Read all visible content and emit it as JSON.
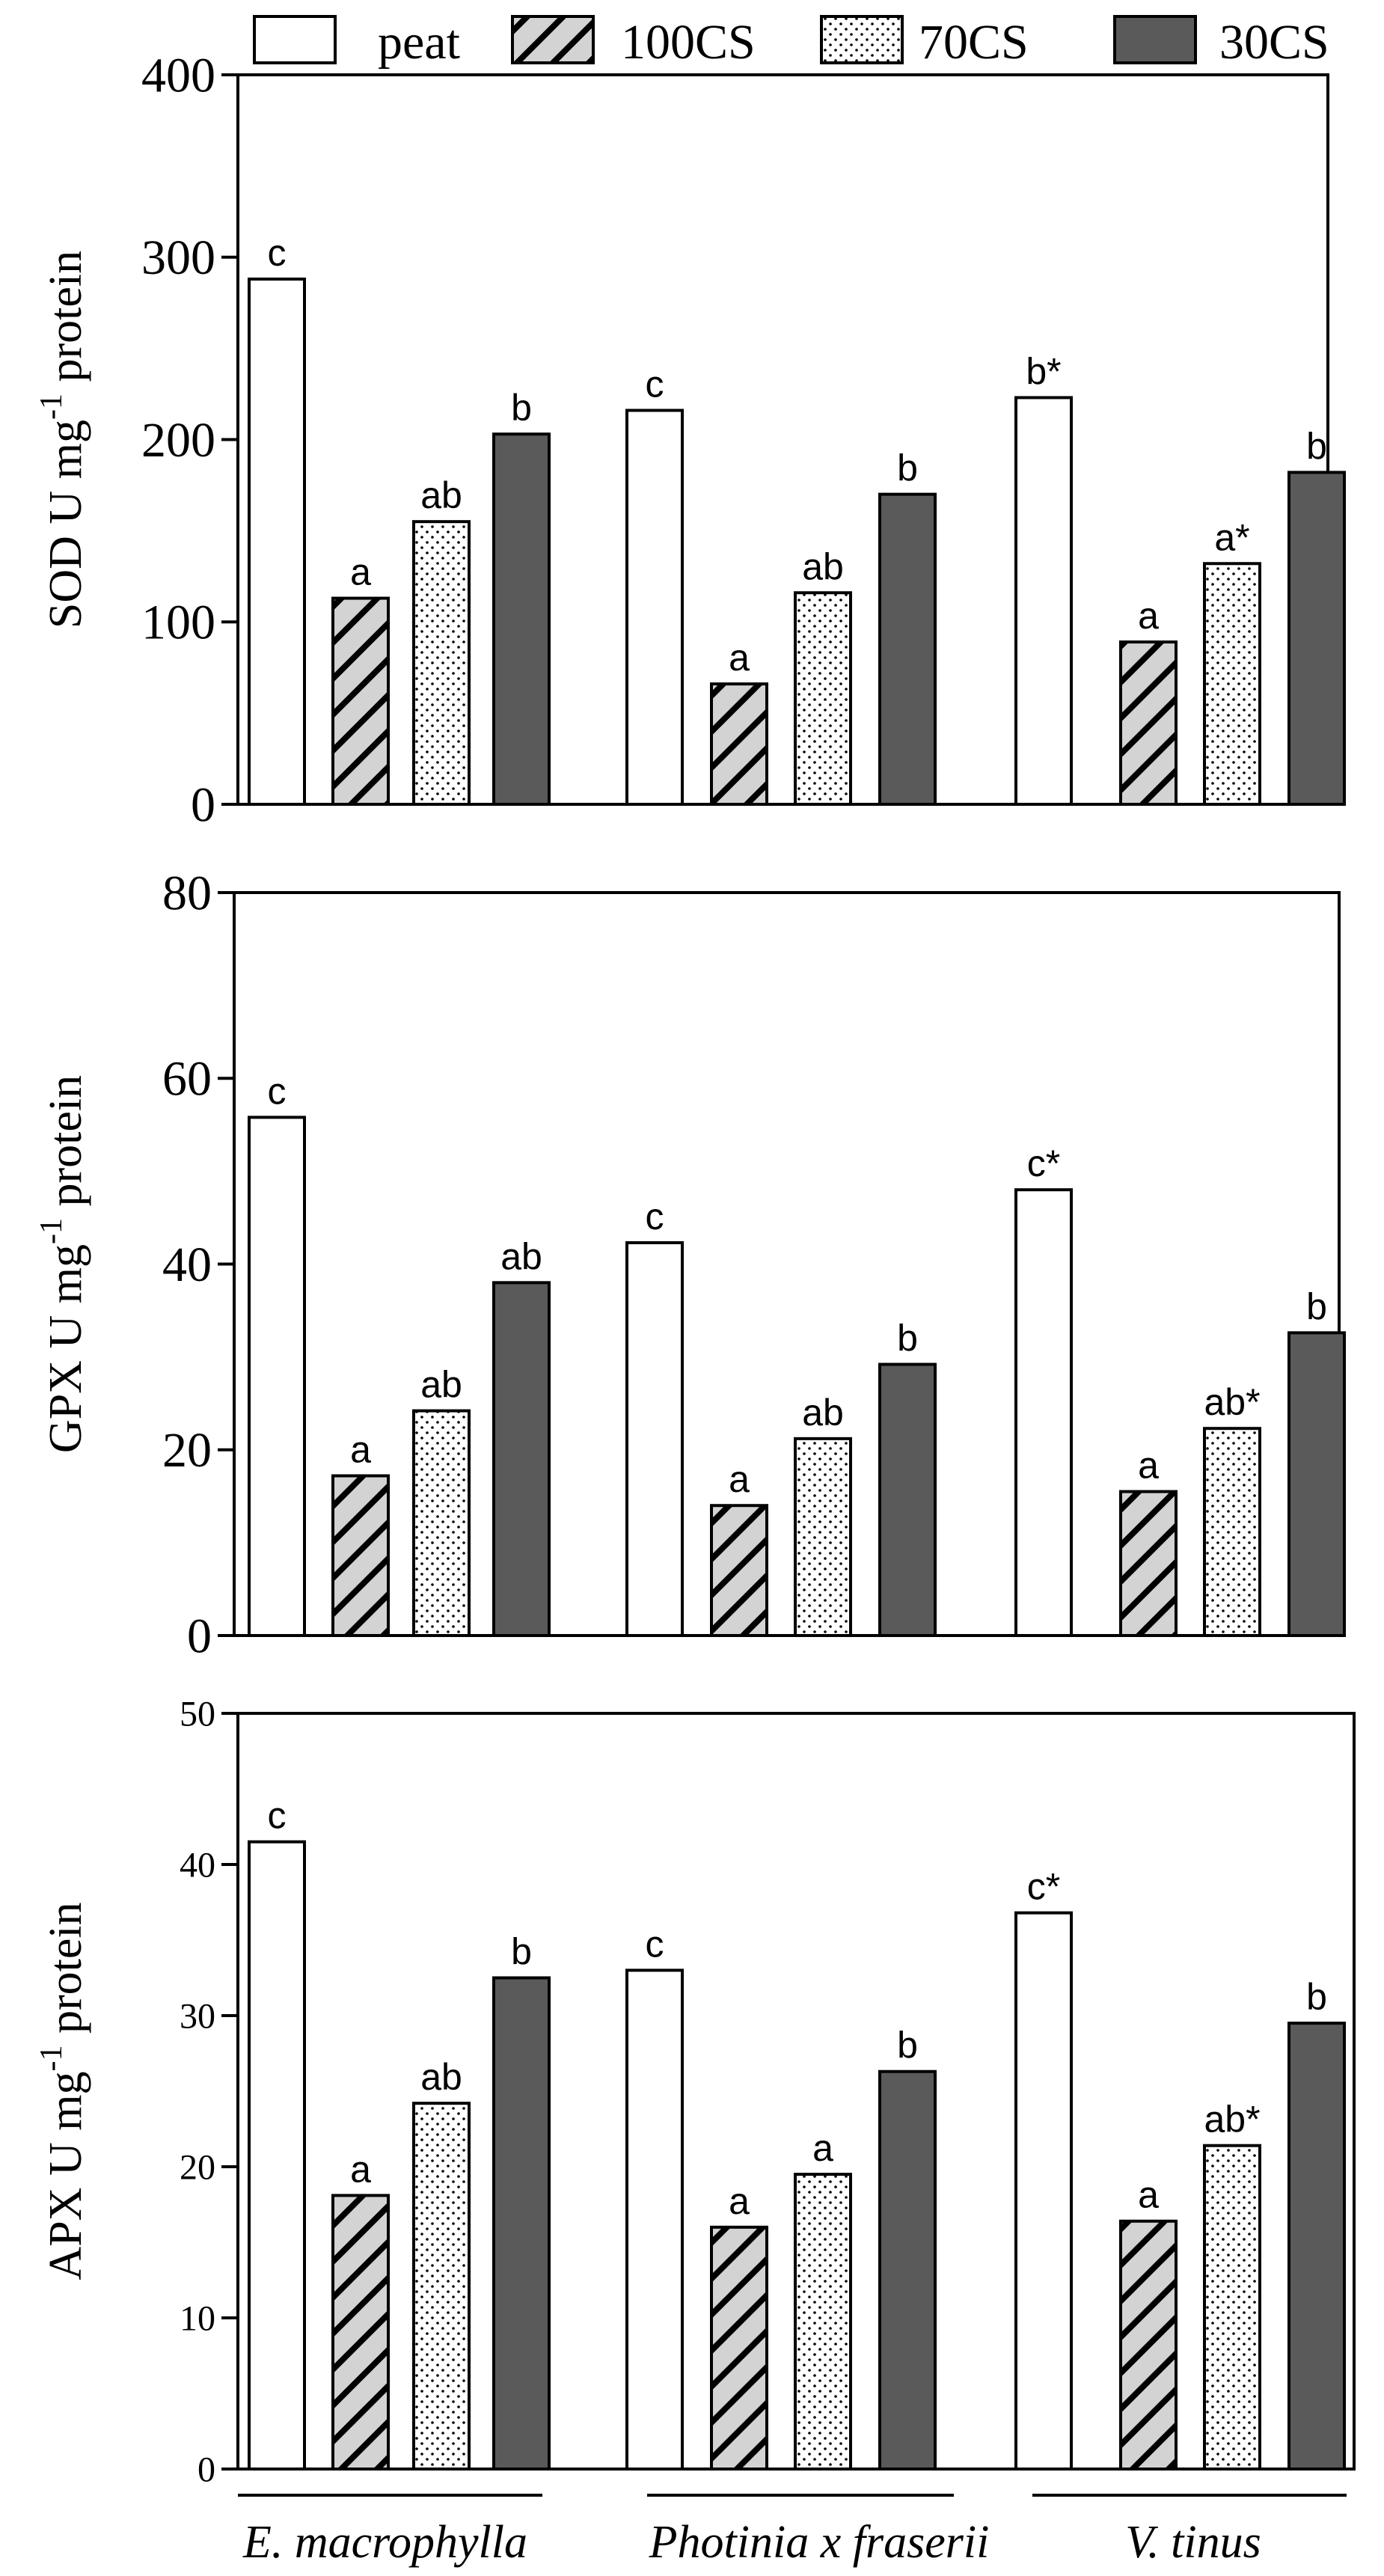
{
  "legend": [
    {
      "key": "peat",
      "label": "peat",
      "style": "white"
    },
    {
      "key": "100CS",
      "label": "100CS",
      "style": "hatch"
    },
    {
      "key": "70CS",
      "label": "70CS",
      "style": "dots"
    },
    {
      "key": "30CS",
      "label": "30CS",
      "style": "dark"
    }
  ],
  "species": [
    "E. macrophylla",
    "Photinia x fraserii",
    "V. tinus"
  ],
  "colors": {
    "dark": "#5a5a5a",
    "hatch_fill": "#d3d3d3",
    "stroke": "#000000",
    "white": "#ffffff"
  },
  "chart_data": [
    {
      "type": "bar",
      "title": "",
      "ylabel_main": "SOD U mg",
      "ylabel_sup": "-1",
      "ylabel_tail": " protein",
      "xlabel": "",
      "ylim": [
        0,
        400
      ],
      "yticks": [
        "0",
        "100",
        "200",
        "300",
        "400"
      ],
      "categories": [
        "E. macrophylla",
        "Photinia x fraserii",
        "V. tinus"
      ],
      "series": [
        {
          "name": "peat",
          "values": [
            288,
            216,
            223
          ],
          "labels": [
            "c",
            "c",
            "b*"
          ]
        },
        {
          "name": "100CS",
          "values": [
            113,
            66,
            89
          ],
          "labels": [
            "a",
            "a",
            "a"
          ]
        },
        {
          "name": "70CS",
          "values": [
            155,
            116,
            132
          ],
          "labels": [
            "ab",
            "ab",
            "a*"
          ]
        },
        {
          "name": "30CS",
          "values": [
            203,
            170,
            182
          ],
          "labels": [
            "b",
            "b",
            "b"
          ]
        }
      ]
    },
    {
      "type": "bar",
      "title": "",
      "ylabel_main": "GPX U mg",
      "ylabel_sup": "-1",
      "ylabel_tail": " protein",
      "xlabel": "",
      "ylim": [
        0,
        80
      ],
      "yticks": [
        "0",
        "20",
        "40",
        "60",
        "80"
      ],
      "categories": [
        "E. macrophylla",
        "Photinia x fraserii",
        "V. tinus"
      ],
      "series": [
        {
          "name": "peat",
          "values": [
            55.8,
            42.3,
            48
          ],
          "labels": [
            "c",
            "c",
            "c*"
          ]
        },
        {
          "name": "100CS",
          "values": [
            17.2,
            14,
            15.5
          ],
          "labels": [
            "a",
            "a",
            "a"
          ]
        },
        {
          "name": "70CS",
          "values": [
            24.2,
            21.2,
            22.3
          ],
          "labels": [
            "ab",
            "ab",
            "ab*"
          ]
        },
        {
          "name": "30CS",
          "values": [
            38,
            29.2,
            32.6
          ],
          "labels": [
            "ab",
            "b",
            "b"
          ]
        }
      ]
    },
    {
      "type": "bar",
      "title": "",
      "ylabel_main": "APX U mg",
      "ylabel_sup": "-1",
      "ylabel_tail": " protein",
      "xlabel": "",
      "ylim": [
        0,
        50
      ],
      "yticks": [
        "0",
        "10",
        "20",
        "30",
        "40",
        "50"
      ],
      "categories": [
        "E. macrophylla",
        "Photinia x fraserii",
        "V. tinus"
      ],
      "series": [
        {
          "name": "peat",
          "values": [
            41.5,
            33,
            36.8
          ],
          "labels": [
            "c",
            "c",
            "c*"
          ]
        },
        {
          "name": "100CS",
          "values": [
            18.1,
            16,
            16.4
          ],
          "labels": [
            "a",
            "a",
            "a"
          ]
        },
        {
          "name": "70CS",
          "values": [
            24.2,
            19.5,
            21.4
          ],
          "labels": [
            "ab",
            "a",
            "ab*"
          ]
        },
        {
          "name": "30CS",
          "values": [
            32.5,
            26.3,
            29.5
          ],
          "labels": [
            "b",
            "b",
            "b"
          ]
        }
      ]
    }
  ]
}
